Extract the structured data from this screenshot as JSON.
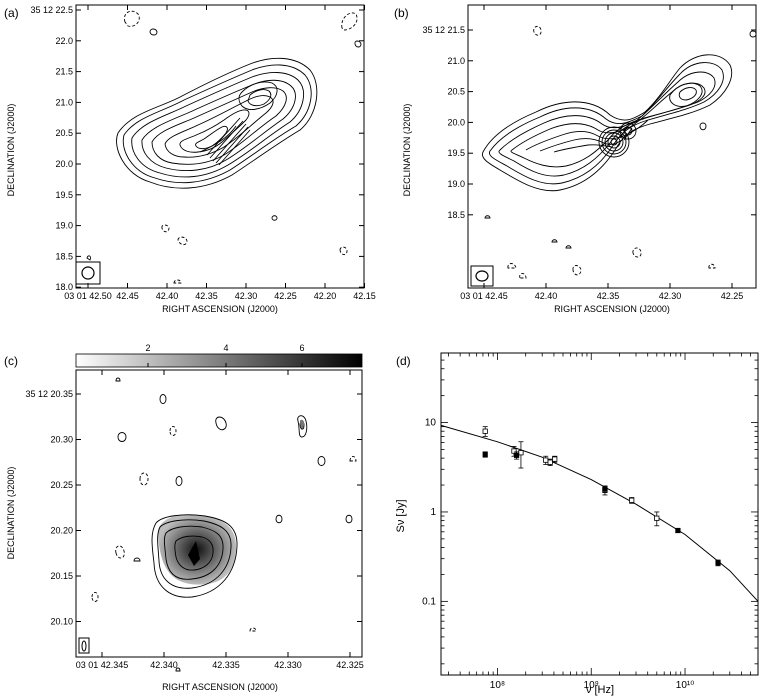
{
  "chart_data": [
    {
      "type": "contour",
      "panel_label": "(a)",
      "xlabel": "RIGHT ASCENSION (J2000)",
      "ylabel": "DECLINATION (J2000)",
      "x_ticks": [
        "03 01 42.50",
        "42.45",
        "42.40",
        "42.35",
        "42.30",
        "42.25",
        "42.20",
        "42.15"
      ],
      "y_ticks": [
        "35 12 22.5",
        "22.0",
        "21.5",
        "21.0",
        "20.5",
        "20.0",
        "19.5",
        "19.0",
        "18.5",
        "18.0"
      ]
    },
    {
      "type": "contour",
      "panel_label": "(b)",
      "xlabel": "RIGHT ASCENSION (J2000)",
      "ylabel": "DECLINATION (J2000)",
      "x_ticks": [
        "03 01 42.45",
        "42.40",
        "42.35",
        "42.30",
        "42.25"
      ],
      "y_ticks": [
        "35 12 21.5",
        "21.0",
        "20.5",
        "20.0",
        "19.5",
        "19.0",
        "18.5"
      ]
    },
    {
      "type": "contour",
      "panel_label": "(c)",
      "xlabel": "RIGHT ASCENSION (J2000)",
      "ylabel": "DECLINATION (J2000)",
      "x_ticks": [
        "03 01 42.345",
        "42.340",
        "42.335",
        "42.330",
        "42.325"
      ],
      "y_ticks": [
        "35 12 20.35",
        "20.30",
        "20.25",
        "20.20",
        "20.15",
        "20.10"
      ],
      "colorbar_ticks": [
        "2",
        "4",
        "6"
      ]
    },
    {
      "type": "scatter",
      "panel_label": "(d)",
      "xlabel": "ν [Hz]",
      "ylabel": "Sν [Jy]",
      "xscale": "log",
      "yscale": "log",
      "xlim": [
        25000000.0,
        60000000000.0
      ],
      "ylim": [
        0.015,
        60
      ],
      "x_tick_labels": [
        "10⁸",
        "10⁹",
        "10¹⁰"
      ],
      "y_tick_labels": [
        "0.1",
        "1",
        "10"
      ],
      "series": [
        {
          "marker": "open-square",
          "points": [
            {
              "x": 74000000.0,
              "y": 8.0,
              "err": 1.0
            },
            {
              "x": 150000000.0,
              "y": 4.8,
              "err": 0.6
            },
            {
              "x": 178000000.0,
              "y": 4.6,
              "err": 1.5
            },
            {
              "x": 327000000.0,
              "y": 3.8,
              "err": 0.4
            },
            {
              "x": 365000000.0,
              "y": 3.6,
              "err": 0.3
            },
            {
              "x": 408000000.0,
              "y": 3.9,
              "err": 0.3
            },
            {
              "x": 1400000000.0,
              "y": 1.75,
              "err": 0.2
            },
            {
              "x": 2700000000.0,
              "y": 1.35,
              "err": 0.1
            },
            {
              "x": 5000000000.0,
              "y": 0.85,
              "err": 0.15
            }
          ]
        },
        {
          "marker": "filled-square",
          "points": [
            {
              "x": 74000000.0,
              "y": 4.4,
              "err": 0.3
            },
            {
              "x": 160000000.0,
              "y": 4.3,
              "err": 0.4
            },
            {
              "x": 1400000000.0,
              "y": 1.8,
              "err": 0.15
            },
            {
              "x": 8400000000.0,
              "y": 0.62,
              "err": 0.03
            },
            {
              "x": 22500000000.0,
              "y": 0.27,
              "err": 0.02
            }
          ]
        }
      ],
      "fit_curve": {
        "x": [
          25000000.0,
          100000000.0,
          300000000.0,
          1000000000.0,
          3000000000.0,
          10000000000.0,
          30000000000.0,
          60000000000.0
        ],
        "y": [
          9.3,
          6.1,
          4.1,
          2.3,
          1.22,
          0.56,
          0.22,
          0.1
        ]
      }
    }
  ]
}
